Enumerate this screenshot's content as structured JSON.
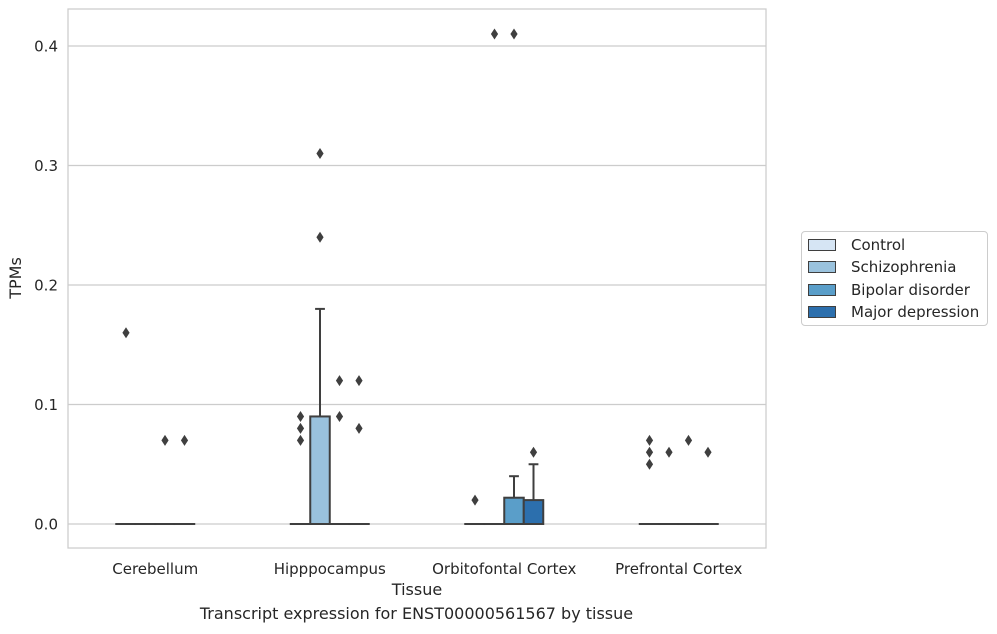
{
  "caption": "Transcript expression for ENST00000561567 by tissue",
  "chart_data": {
    "type": "box",
    "title": "",
    "xlabel": "Tissue",
    "ylabel": "TPMs",
    "ylim": [
      -0.02,
      0.43
    ],
    "yticks": [
      0.0,
      0.1,
      0.2,
      0.3,
      0.4
    ],
    "ytick_labels": [
      "0.0",
      "0.1",
      "0.2",
      "0.3",
      "0.4"
    ],
    "grid": "horizontal",
    "legend_position": "right",
    "categories": [
      "Cerebellum",
      "Hipppocampus",
      "Orbitofontal Cortex",
      "Prefrontal Cortex"
    ],
    "series": [
      {
        "name": "Control",
        "color": "#d6e5f4",
        "boxes": [
          {
            "q1": 0,
            "median": 0,
            "q3": 0,
            "whislo": 0,
            "whishi": 0,
            "fliers": [
              0.16
            ]
          },
          {
            "q1": 0,
            "median": 0,
            "q3": 0,
            "whislo": 0,
            "whishi": 0,
            "fliers": [
              0.07,
              0.08,
              0.09
            ]
          },
          {
            "q1": 0,
            "median": 0,
            "q3": 0,
            "whislo": 0,
            "whishi": 0,
            "fliers": [
              0.02
            ]
          },
          {
            "q1": 0,
            "median": 0,
            "q3": 0,
            "whislo": 0,
            "whishi": 0,
            "fliers": [
              0.05,
              0.06,
              0.07
            ]
          }
        ]
      },
      {
        "name": "Schizophrenia",
        "color": "#9ac2dd",
        "boxes": [
          {
            "q1": 0,
            "median": 0,
            "q3": 0,
            "whislo": 0,
            "whishi": 0,
            "fliers": []
          },
          {
            "q1": 0,
            "median": 0,
            "q3": 0.09,
            "whislo": 0,
            "whishi": 0.18,
            "fliers": [
              0.24,
              0.31
            ]
          },
          {
            "q1": 0,
            "median": 0,
            "q3": 0,
            "whislo": 0,
            "whishi": 0,
            "fliers": [
              0.41
            ]
          },
          {
            "q1": 0,
            "median": 0,
            "q3": 0,
            "whislo": 0,
            "whishi": 0,
            "fliers": [
              0.06
            ]
          }
        ]
      },
      {
        "name": "Bipolar disorder",
        "color": "#5a9ec9",
        "boxes": [
          {
            "q1": 0,
            "median": 0,
            "q3": 0,
            "whislo": 0,
            "whishi": 0,
            "fliers": [
              0.07
            ]
          },
          {
            "q1": 0,
            "median": 0,
            "q3": 0,
            "whislo": 0,
            "whishi": 0,
            "fliers": [
              0.09,
              0.12
            ]
          },
          {
            "q1": 0,
            "median": 0,
            "q3": 0.022,
            "whislo": 0,
            "whishi": 0.04,
            "fliers": [
              0.41
            ]
          },
          {
            "q1": 0,
            "median": 0,
            "q3": 0,
            "whislo": 0,
            "whishi": 0,
            "fliers": [
              0.07
            ]
          }
        ]
      },
      {
        "name": "Major depression",
        "color": "#2c6fad",
        "boxes": [
          {
            "q1": 0,
            "median": 0,
            "q3": 0,
            "whislo": 0,
            "whishi": 0,
            "fliers": [
              0.07
            ]
          },
          {
            "q1": 0,
            "median": 0,
            "q3": 0,
            "whislo": 0,
            "whishi": 0,
            "fliers": [
              0.08,
              0.12
            ]
          },
          {
            "q1": 0,
            "median": 0,
            "q3": 0.02,
            "whislo": 0,
            "whishi": 0.05,
            "fliers": [
              0.06
            ]
          },
          {
            "q1": 0,
            "median": 0,
            "q3": 0,
            "whislo": 0,
            "whishi": 0,
            "fliers": [
              0.06
            ]
          }
        ]
      }
    ]
  }
}
